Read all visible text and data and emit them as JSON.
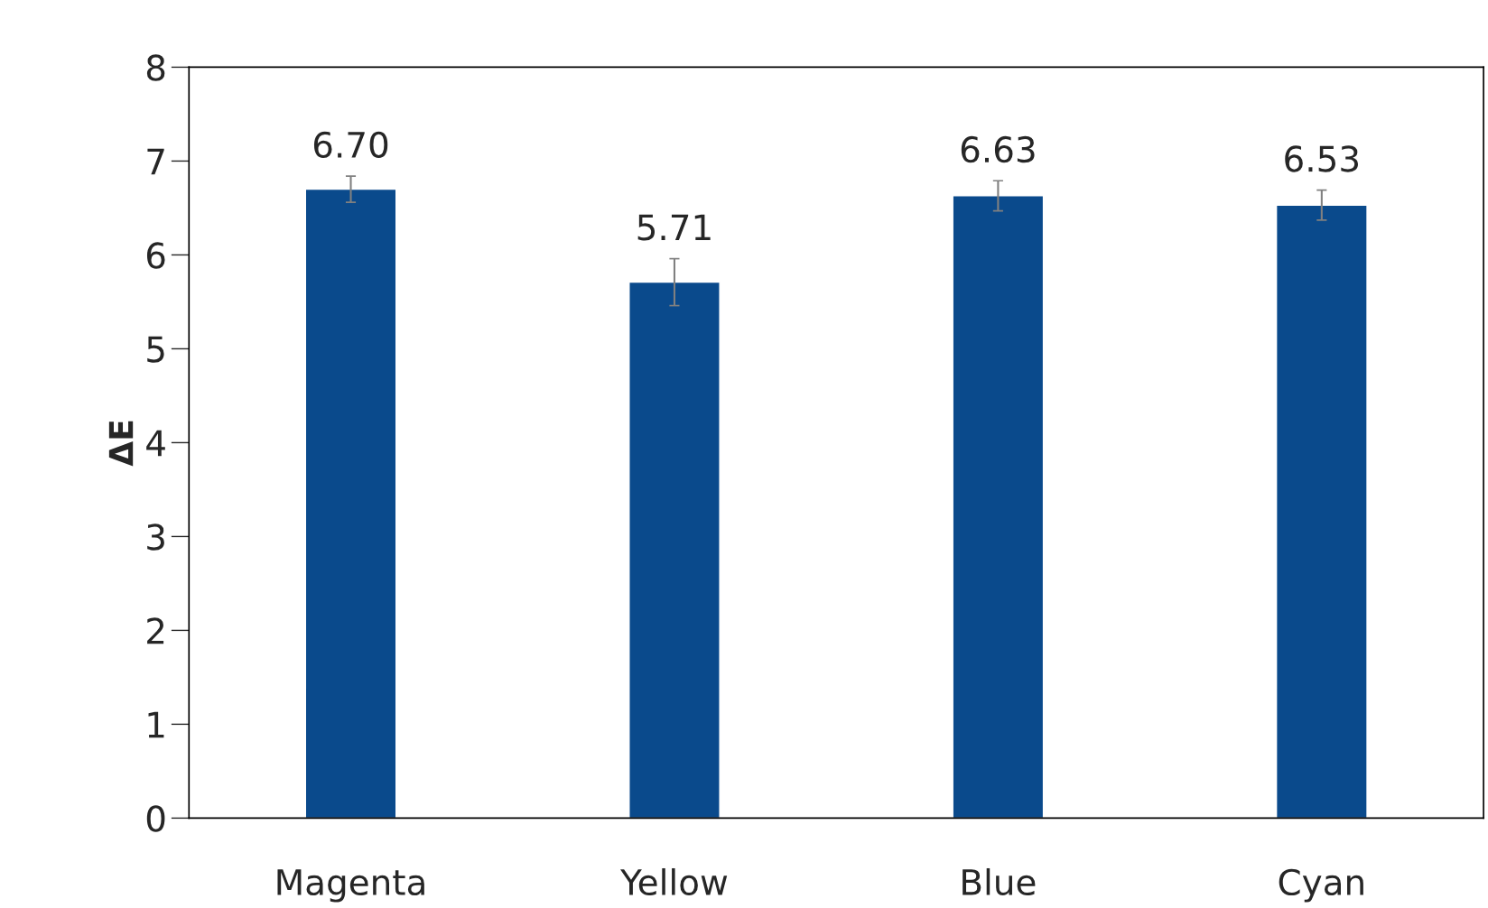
{
  "chart_data": {
    "type": "bar",
    "ylabel": "ΔE",
    "categories": [
      "Magenta",
      "Yellow",
      "Blue",
      "Cyan"
    ],
    "values": [
      6.7,
      5.71,
      6.63,
      6.53
    ],
    "errors": [
      0.14,
      0.25,
      0.16,
      0.16
    ],
    "color": "#0a4a8c",
    "ylim": [
      0,
      8
    ],
    "yticks": [
      0,
      1,
      2,
      3,
      4,
      5,
      6,
      7,
      8
    ],
    "value_labels": [
      "6.70",
      "5.71",
      "6.63",
      "6.53"
    ],
    "grid": false
  }
}
